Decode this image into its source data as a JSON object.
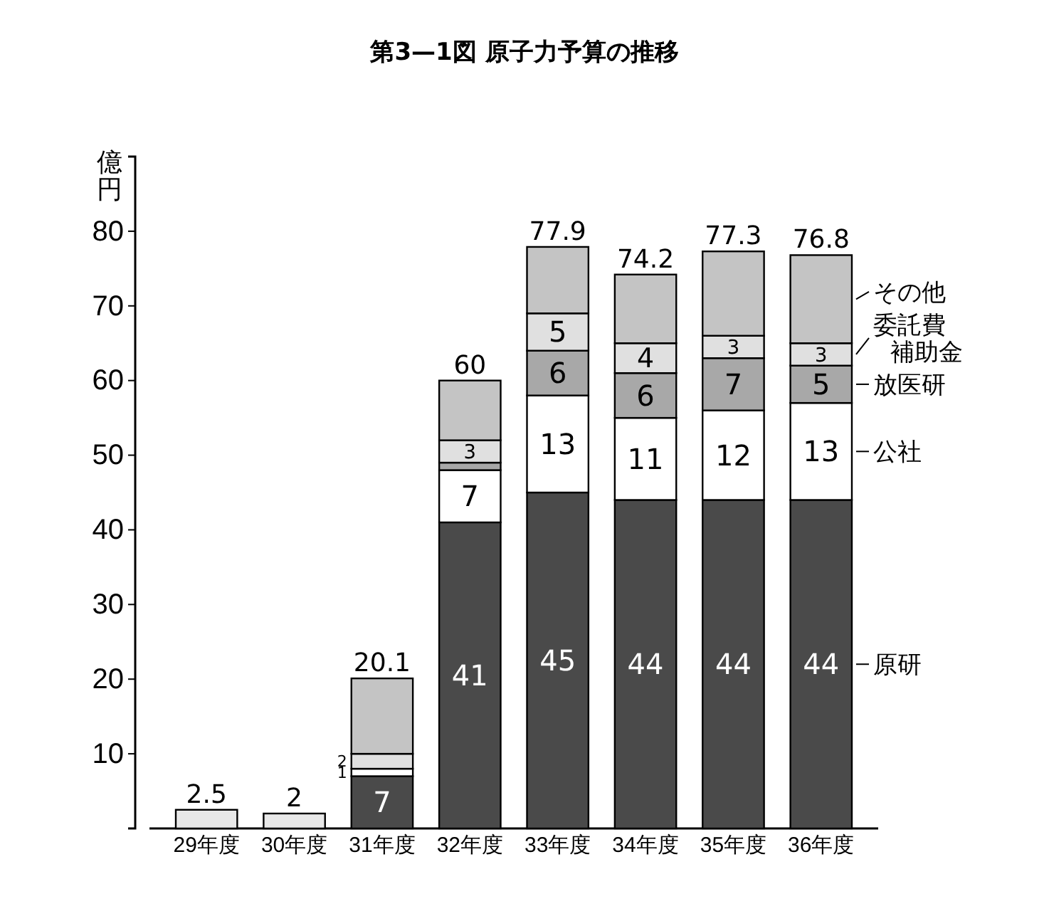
{
  "chart_data": {
    "type": "bar",
    "title": "第3—1図 原子力予算の推移",
    "ylabel": "億円",
    "stacked": true,
    "categories": [
      "29年度",
      "30年度",
      "31年度",
      "32年度",
      "33年度",
      "34年度",
      "35年度",
      "36年度"
    ],
    "ylim": [
      0,
      90
    ],
    "legend": "right",
    "yticks": [
      10,
      20,
      30,
      40,
      50,
      60,
      70,
      80
    ],
    "grid": false,
    "series": [
      {
        "color": "#e8e8e8",
        "values": [
          2.5,
          2,
          null,
          null,
          null,
          null,
          null,
          null
        ]
      },
      {
        "name": "原研",
        "color": "#4a4a4a",
        "values": [
          null,
          null,
          7,
          41,
          45,
          44,
          44,
          44
        ],
        "value_labels": [
          null,
          null,
          "7",
          "41",
          "45",
          "44",
          "44",
          "44"
        ]
      },
      {
        "name": "公社",
        "color": "#ffffff",
        "values": [
          null,
          null,
          1,
          7,
          13,
          11,
          12,
          13
        ],
        "value_labels": [
          null,
          null,
          "1",
          "7",
          "13",
          "11",
          "12",
          "13"
        ]
      },
      {
        "name": "放医研",
        "color": "#a8a8a8",
        "values": [
          null,
          null,
          null,
          1,
          6,
          6,
          7,
          5
        ],
        "value_labels": [
          null,
          null,
          null,
          null,
          "6",
          "6",
          "7",
          "5"
        ]
      },
      {
        "name": "委託費補助金",
        "color": "#e0e0e0",
        "values": [
          null,
          null,
          2,
          3,
          5,
          4,
          3,
          3
        ],
        "value_labels": [
          null,
          null,
          "2",
          "3",
          "5",
          "4",
          "3",
          "3"
        ]
      },
      {
        "name": "その他",
        "color": "#c4c4c4",
        "values": [
          null,
          null,
          10.1,
          8,
          8.9,
          9.2,
          11.3,
          11.8
        ]
      }
    ],
    "totals": [
      "2.5",
      "2",
      "20.1",
      "60",
      "77.9",
      "74.2",
      "77.3",
      "76.8"
    ]
  }
}
